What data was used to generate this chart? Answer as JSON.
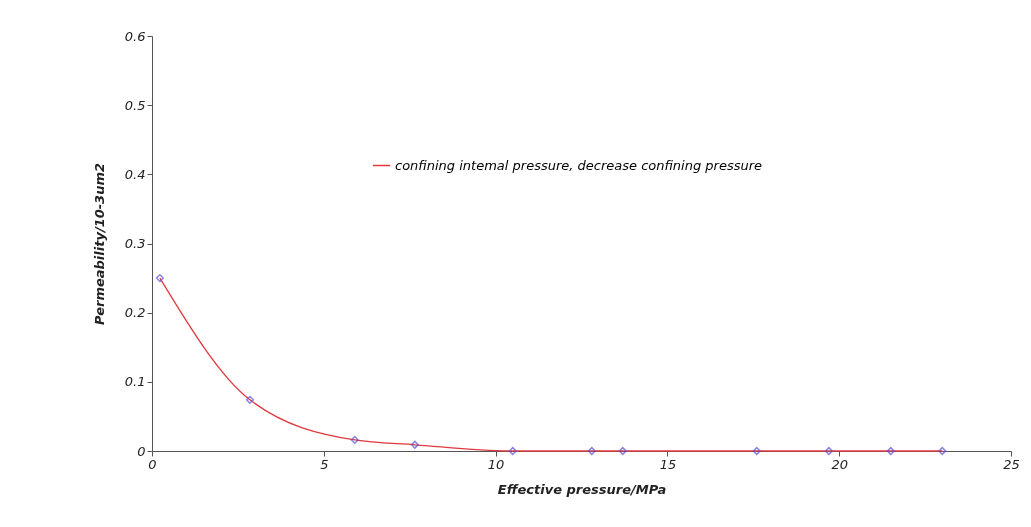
{
  "chart_data": {
    "type": "line",
    "xlabel": "Effective pressure/MPa",
    "ylabel": "Permeability/10-3um2",
    "xlim": [
      0,
      25
    ],
    "xticks": [
      0,
      5,
      10,
      15,
      20,
      25
    ],
    "ylim": [
      0,
      0.6
    ],
    "yticks": [
      0,
      0.1,
      0.2,
      0.3,
      0.4,
      0.5,
      0.6
    ],
    "grid": false,
    "legend": "top",
    "marker": "diamond",
    "line_style": "solid",
    "series": [
      {
        "name": "confining intemal pressure, decrease confining pressure",
        "color": "#e0393e",
        "x": [
          0.23,
          2.85,
          5.9,
          7.65,
          10.5,
          12.8,
          13.7,
          17.6,
          19.7,
          21.5,
          23.0
        ],
        "values": [
          0.25,
          0.074,
          0.016,
          0.009,
          0,
          0,
          0,
          0,
          0,
          0,
          0
        ]
      }
    ]
  }
}
